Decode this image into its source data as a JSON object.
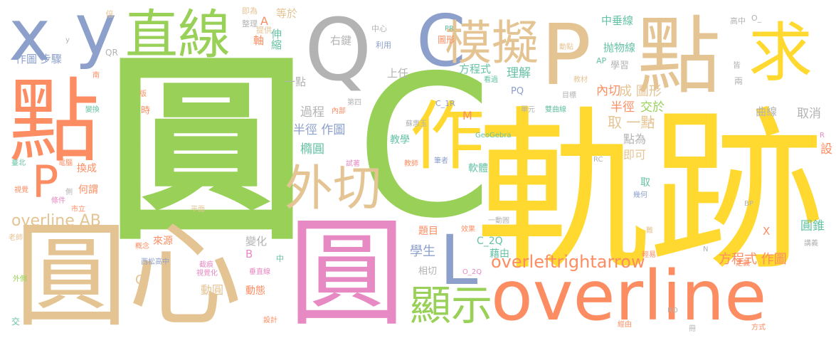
{
  "palette": {
    "green": "#99d158",
    "yellow": "#ffd92f",
    "orange": "#fc8d62",
    "tan": "#e5c494",
    "blue": "#8da0cb",
    "pink": "#e78ac3",
    "teal": "#66c2a5",
    "gray": "#b3b3b3"
  },
  "words": [
    {
      "text": "圓",
      "color": "green"
    },
    {
      "text": "軌跡",
      "color": "yellow"
    },
    {
      "text": "C",
      "color": "green"
    },
    {
      "text": "圓心",
      "color": "tan"
    },
    {
      "text": "圓",
      "color": "pink"
    },
    {
      "text": "overline",
      "color": "orange"
    },
    {
      "text": "點",
      "color": "orange"
    },
    {
      "text": "點",
      "color": "tan"
    },
    {
      "text": "求",
      "color": "yellow"
    },
    {
      "text": "P",
      "color": "tan"
    },
    {
      "text": "Q",
      "color": "gray"
    },
    {
      "text": "C",
      "color": "blue"
    },
    {
      "text": "直線",
      "color": "green"
    },
    {
      "text": "模擬",
      "color": "tan"
    },
    {
      "text": "x",
      "color": "blue"
    },
    {
      "text": "y",
      "color": "blue"
    },
    {
      "text": "作",
      "color": "yellow"
    },
    {
      "text": "外切",
      "color": "tan"
    },
    {
      "text": "P",
      "color": "orange"
    },
    {
      "text": "L",
      "color": "blue"
    },
    {
      "text": "顯示",
      "color": "green"
    },
    {
      "text": "overleftrightarrow",
      "color": "orange"
    },
    {
      "text": "overline AB",
      "color": "tan"
    },
    {
      "text": "方程式 作圖",
      "color": "orange"
    },
    {
      "text": "學生",
      "color": "blue"
    },
    {
      "text": "圓錐",
      "color": "teal"
    },
    {
      "text": "曲線",
      "color": "gray"
    },
    {
      "text": "取消",
      "color": "gray"
    },
    {
      "text": "設",
      "color": "orange"
    },
    {
      "text": "成 圖形",
      "color": "tan"
    },
    {
      "text": "內切",
      "color": "orange"
    },
    {
      "text": "半徑",
      "color": "orange"
    },
    {
      "text": "交於",
      "color": "green"
    },
    {
      "text": "取 一點",
      "color": "tan"
    },
    {
      "text": "點為",
      "color": "gray"
    },
    {
      "text": "即可",
      "color": "tan"
    },
    {
      "text": "半徑 作圖",
      "color": "blue"
    },
    {
      "text": "過程",
      "color": "gray"
    },
    {
      "text": "橢圓",
      "color": "teal"
    },
    {
      "text": "理解",
      "color": "teal"
    },
    {
      "text": "方程式",
      "color": "teal"
    },
    {
      "text": "抛物線",
      "color": "teal"
    },
    {
      "text": "中垂線",
      "color": "teal"
    },
    {
      "text": "學習",
      "color": "gray"
    },
    {
      "text": "右鍵",
      "color": "gray"
    },
    {
      "text": "伸縮",
      "color": "teal"
    },
    {
      "text": "軸",
      "color": "orange"
    },
    {
      "text": "等於",
      "color": "tan"
    },
    {
      "text": "A",
      "color": "orange"
    },
    {
      "text": "上任",
      "color": "gray"
    },
    {
      "text": "一點",
      "color": "gray"
    },
    {
      "text": "作圖 步驟",
      "color": "blue"
    },
    {
      "text": "換成",
      "color": "orange"
    },
    {
      "text": "何謂",
      "color": "orange"
    },
    {
      "text": "時",
      "color": "orange"
    },
    {
      "text": "教學",
      "color": "teal"
    },
    {
      "text": "軟體",
      "color": "teal"
    },
    {
      "text": "藉由",
      "color": "teal"
    },
    {
      "text": "C_2Q",
      "color": "teal"
    },
    {
      "text": "題目",
      "color": "orange"
    },
    {
      "text": "變化",
      "color": "gray"
    },
    {
      "text": "來源",
      "color": "orange"
    },
    {
      "text": "動圓",
      "color": "tan"
    },
    {
      "text": "動態",
      "color": "orange"
    },
    {
      "text": "O",
      "color": "tan"
    },
    {
      "text": "B",
      "color": "pink"
    },
    {
      "text": "PQ",
      "color": "blue"
    },
    {
      "text": "M",
      "color": "orange"
    },
    {
      "text": "取",
      "color": "teal"
    },
    {
      "text": "X",
      "color": "orange"
    },
    {
      "text": "相切",
      "color": "gray"
    },
    {
      "text": "中心",
      "color": "gray"
    },
    {
      "text": "利用",
      "color": "blue"
    },
    {
      "text": "圖形",
      "color": "orange"
    },
    {
      "text": "提供",
      "color": "tan"
    },
    {
      "text": "整理",
      "color": "gray"
    },
    {
      "text": "即為",
      "color": "tan"
    },
    {
      "text": "倍",
      "color": "tan"
    },
    {
      "text": "QR",
      "color": "gray"
    },
    {
      "text": "高中",
      "color": "gray"
    },
    {
      "text": "O_",
      "color": "gray"
    },
    {
      "text": "PR",
      "color": "teal"
    },
    {
      "text": "AP",
      "color": "teal"
    },
    {
      "text": "皆",
      "color": "gray"
    },
    {
      "text": "兩",
      "color": "gray"
    },
    {
      "text": "動點",
      "color": "tan"
    },
    {
      "text": "看過",
      "color": "teal"
    },
    {
      "text": "教材",
      "color": "tan"
    },
    {
      "text": "目標",
      "color": "gray"
    },
    {
      "text": "雙曲線",
      "color": "teal"
    },
    {
      "text": "單元",
      "color": "gray"
    },
    {
      "text": "均",
      "color": "tan"
    },
    {
      "text": "R",
      "color": "pink"
    },
    {
      "text": "C_1R",
      "color": "blue"
    },
    {
      "text": "GeoGebra",
      "color": "teal"
    },
    {
      "text": "蘇惠玉",
      "color": "gray"
    },
    {
      "text": "第四",
      "color": "gray"
    },
    {
      "text": "內部",
      "color": "orange"
    },
    {
      "text": "南",
      "color": "orange"
    },
    {
      "text": "版",
      "color": "orange"
    },
    {
      "text": "變換",
      "color": "teal"
    },
    {
      "text": "臺北",
      "color": "teal"
    },
    {
      "text": "電腦",
      "color": "orange"
    },
    {
      "text": "視覺",
      "color": "orange"
    },
    {
      "text": "條件",
      "color": "pink"
    },
    {
      "text": "側",
      "color": "gray"
    },
    {
      "text": "市立",
      "color": "orange"
    },
    {
      "text": "平面",
      "color": "tan"
    },
    {
      "text": "試著",
      "color": "pink"
    },
    {
      "text": "教師",
      "color": "orange"
    },
    {
      "text": "筆者",
      "color": "blue"
    },
    {
      "text": "RC",
      "color": "gray"
    },
    {
      "text": "幾何",
      "color": "blue"
    },
    {
      "text": "BP",
      "color": "gray"
    },
    {
      "text": "一動圓",
      "color": "gray"
    },
    {
      "text": "效果",
      "color": "orange"
    },
    {
      "text": "難",
      "color": "tan"
    },
    {
      "text": "輕易",
      "color": "orange"
    },
    {
      "text": "N",
      "color": "gray"
    },
    {
      "text": "講義",
      "color": "gray"
    },
    {
      "text": "定義",
      "color": "orange"
    },
    {
      "text": "O_2Q",
      "color": "pink"
    },
    {
      "text": "概念",
      "color": "orange"
    },
    {
      "text": "西松高中",
      "color": "blue"
    },
    {
      "text": "中",
      "color": "teal"
    },
    {
      "text": "垂直線",
      "color": "pink"
    },
    {
      "text": "截痕",
      "color": "pink"
    },
    {
      "text": "視覺化",
      "color": "pink"
    },
    {
      "text": "老師",
      "color": "tan"
    },
    {
      "text": "外側",
      "color": "green"
    },
    {
      "text": "交",
      "color": "teal"
    },
    {
      "text": "設計",
      "color": "orange"
    },
    {
      "text": "RO",
      "color": "gray"
    },
    {
      "text": "經由",
      "color": "orange"
    },
    {
      "text": "冊",
      "color": "gray"
    },
    {
      "text": "方式",
      "color": "orange"
    },
    {
      "text": "y",
      "color": "gray"
    }
  ]
}
